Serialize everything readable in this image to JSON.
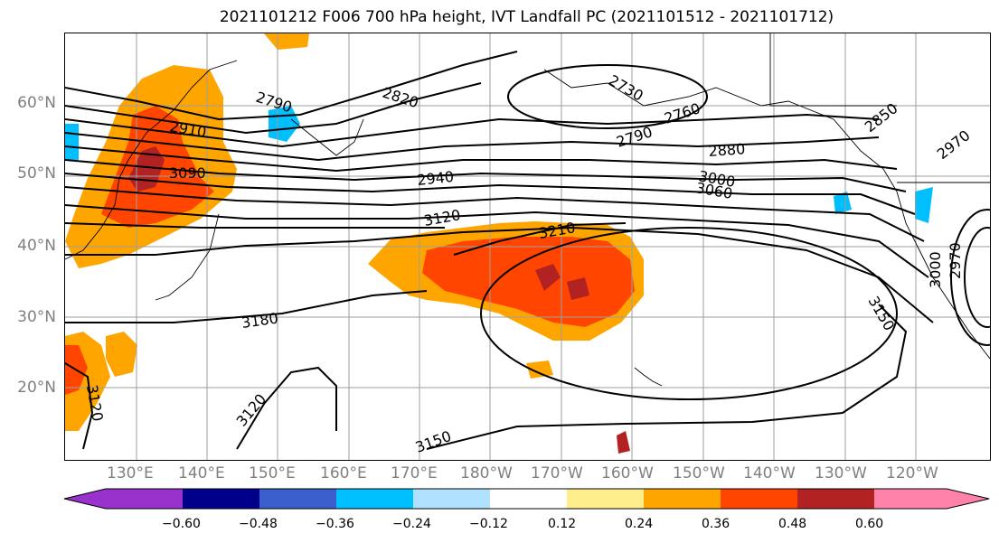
{
  "title": "2021101212 F006 700 hPa height, IVT Landfall PC (2021101512 - 2021101712)",
  "lat_labels": [
    "60°N",
    "50°N",
    "40°N",
    "30°N",
    "20°N"
  ],
  "lon_labels": [
    "130°E",
    "140°E",
    "150°E",
    "160°E",
    "170°E",
    "180°W",
    "170°W",
    "160°W",
    "150°W",
    "140°W",
    "130°W",
    "120°W"
  ],
  "contour_labels": [
    "2790",
    "2820",
    "2730",
    "2910",
    "3090",
    "2760",
    "2790",
    "2880",
    "2850",
    "2970",
    "2940",
    "3000",
    "3060",
    "3120",
    "3210",
    "3180",
    "3000",
    "2970",
    "3150",
    "3120",
    "3120",
    "3150"
  ],
  "colorbar": {
    "tick_labels": [
      "−0.60",
      "−0.48",
      "−0.36",
      "−0.24",
      "−0.12",
      "0.12",
      "0.24",
      "0.36",
      "0.48",
      "0.60"
    ],
    "colors": [
      "#9932CC",
      "#00008B",
      "#3A5FCD",
      "#00BFFF",
      "#B0E2FF",
      "#FFFFFF",
      "#FFEC8B",
      "#FFA500",
      "#FF4500",
      "#B22222",
      "#FF82AB"
    ]
  }
}
